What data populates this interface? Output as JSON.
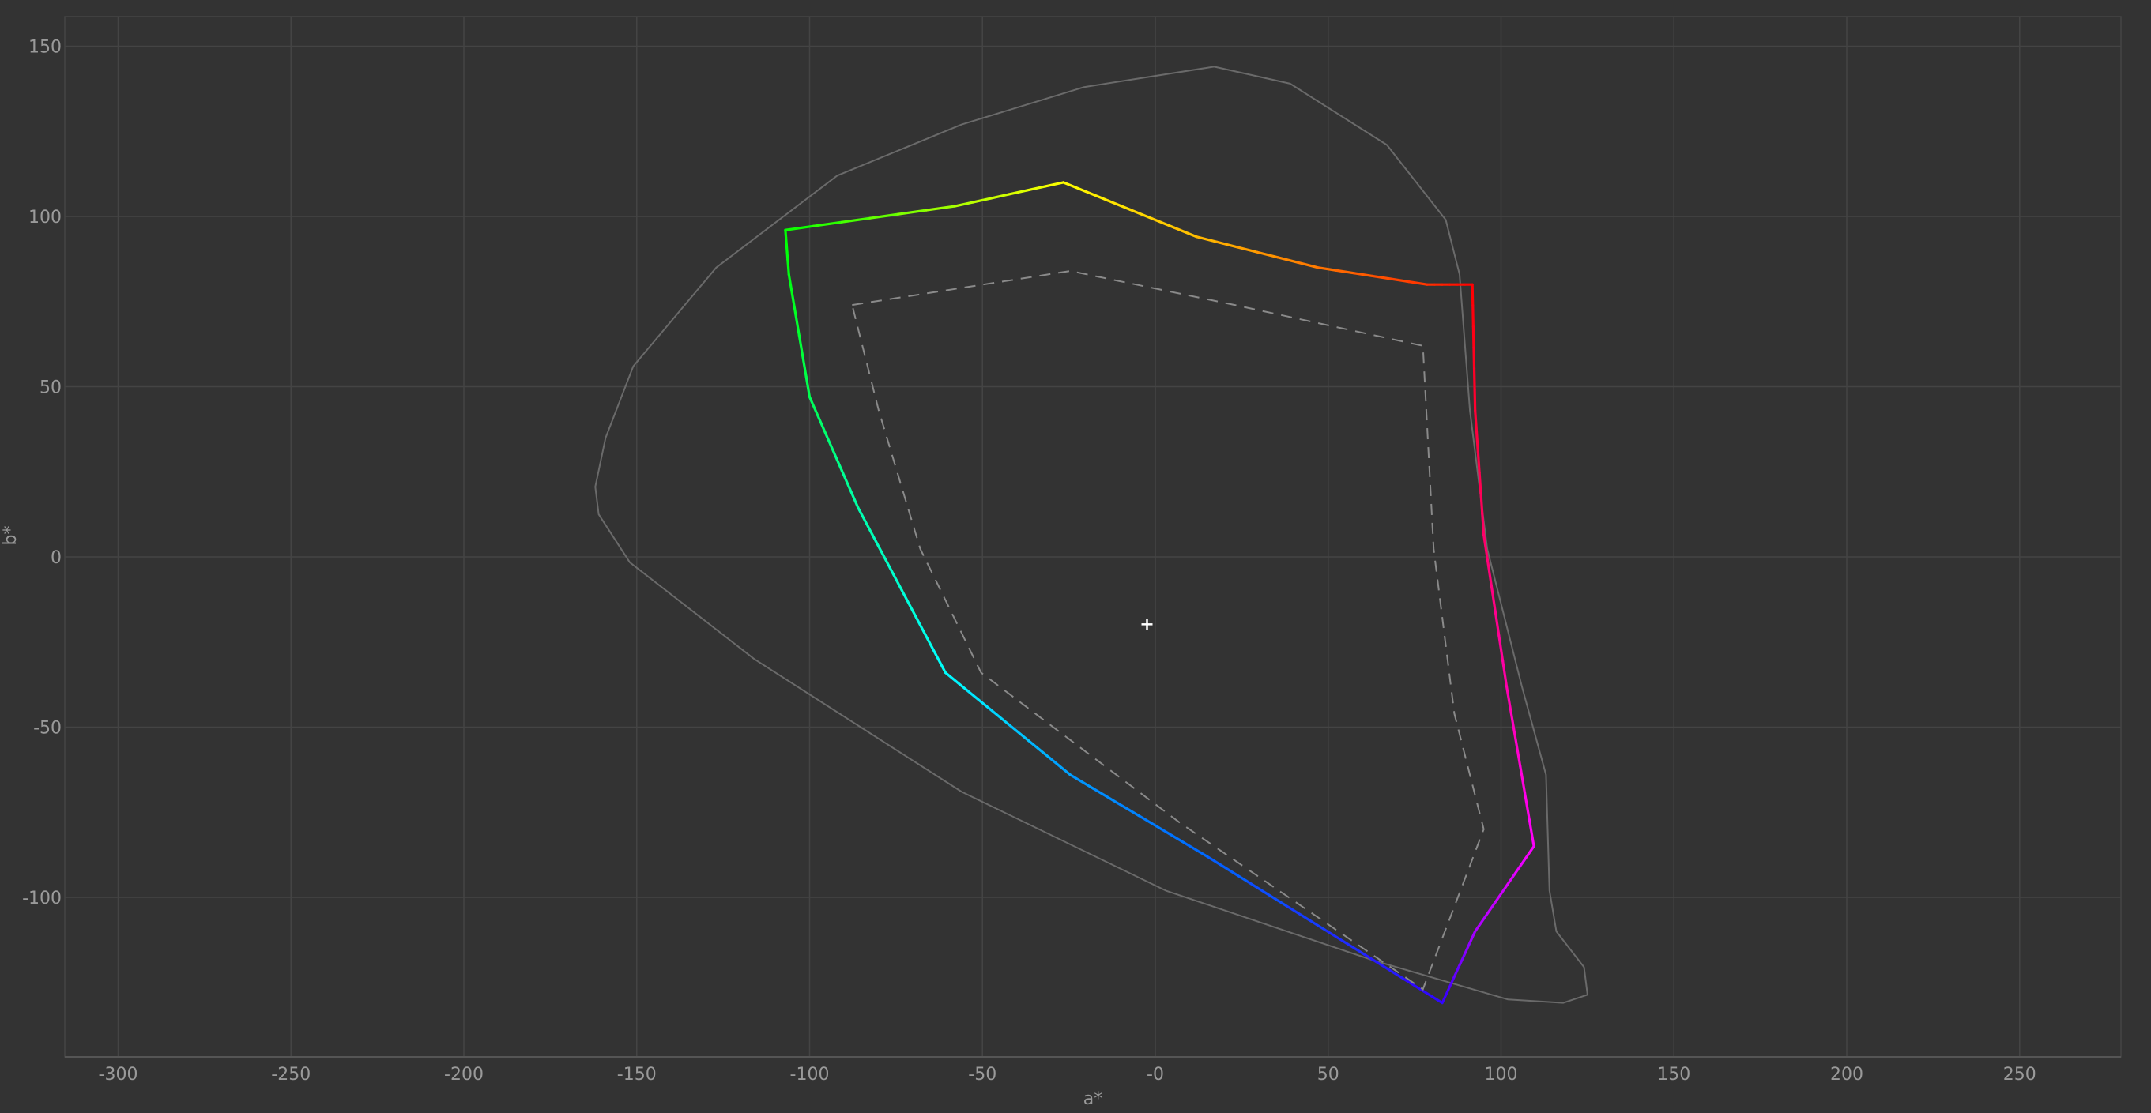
{
  "chart_data": {
    "type": "line",
    "title": "",
    "xlabel": "a*",
    "ylabel": "b*",
    "xlim": [
      -315,
      282
    ],
    "ylim": [
      -147,
      160
    ],
    "grid": true,
    "xticks": [
      -300,
      -250,
      -200,
      -150,
      -100,
      -50,
      0,
      50,
      100,
      150,
      200,
      250
    ],
    "xtick_labels": [
      "-300",
      "-250",
      "-200",
      "-150",
      "-100",
      "-50",
      "-0",
      "50",
      "100",
      "150",
      "200",
      "250"
    ],
    "yticks": [
      150,
      100,
      50,
      0,
      -50,
      -100
    ],
    "ytick_labels": [
      "150",
      "100",
      "50",
      "0",
      "-50",
      "-100"
    ],
    "colors": {
      "background": "#333333",
      "grid": "#444444",
      "locus": "#6a6a6a",
      "reference_gamut": "#8a8a8a",
      "white_point": "#ffffff"
    },
    "series": [
      {
        "style": "solid-gray",
        "points": [
          [
            -162,
            20.6
          ],
          [
            -159,
            35
          ],
          [
            -151,
            56
          ],
          [
            -127,
            85
          ],
          [
            -92,
            112
          ],
          [
            -56,
            127
          ],
          [
            -20.6,
            138
          ],
          [
            17,
            144
          ],
          [
            39,
            139
          ],
          [
            67,
            121
          ],
          [
            84,
            99
          ],
          [
            88,
            83
          ],
          [
            91,
            43
          ],
          [
            96,
            2.4
          ],
          [
            106,
            -38
          ],
          [
            113,
            -64
          ],
          [
            114,
            -98
          ],
          [
            116,
            -110
          ],
          [
            124,
            -120.5
          ],
          [
            125,
            -128.6
          ],
          [
            118,
            -131
          ],
          [
            102,
            -130
          ],
          [
            63,
            -118.5
          ],
          [
            3,
            -98
          ],
          [
            -56,
            -69
          ],
          [
            -116,
            -30
          ],
          [
            -152,
            -1.6
          ],
          [
            -161,
            12.5
          ],
          [
            -162,
            20.6
          ]
        ]
      },
      {
        "style": "hue-gradient",
        "points": [
          [
            -107,
            96,
            "#00ff00"
          ],
          [
            -58,
            103,
            "#aaff00"
          ],
          [
            -26.6,
            110,
            "#ffff00"
          ],
          [
            12,
            94,
            "#ffbb00"
          ],
          [
            47,
            85,
            "#ff7700"
          ],
          [
            78.6,
            80,
            "#ff3300"
          ],
          [
            91.7,
            80,
            "#ff0000"
          ],
          [
            92.5,
            43,
            "#ff0033"
          ],
          [
            95,
            6.5,
            "#ff0066"
          ],
          [
            101.6,
            -38,
            "#ff00aa"
          ],
          [
            109.5,
            -85,
            "#ff00ff"
          ],
          [
            92.5,
            -110,
            "#aa00ff"
          ],
          [
            83,
            -131,
            "#3300ff"
          ],
          [
            15,
            -88,
            "#0066ff"
          ],
          [
            -24.6,
            -64,
            "#0099ff"
          ],
          [
            -60.7,
            -34,
            "#00ffff"
          ],
          [
            -86,
            14.5,
            "#00ffaa"
          ],
          [
            -100,
            47,
            "#00ff55"
          ],
          [
            -106,
            83,
            "#00ff11"
          ],
          [
            -107,
            96,
            "#00ff00"
          ]
        ]
      },
      {
        "style": "dashed-gray",
        "points": [
          [
            -87.7,
            74
          ],
          [
            -24.6,
            84
          ],
          [
            23,
            74
          ],
          [
            77.4,
            62
          ],
          [
            80.5,
            2.4
          ],
          [
            86.5,
            -46
          ],
          [
            95,
            -80
          ],
          [
            77.4,
            -127
          ],
          [
            7,
            -78
          ],
          [
            -50.4,
            -34
          ],
          [
            -68,
            2.4
          ],
          [
            -80,
            43
          ],
          [
            -87.7,
            74
          ]
        ]
      }
    ],
    "white_point": [
      -2.4,
      -19.8
    ]
  }
}
